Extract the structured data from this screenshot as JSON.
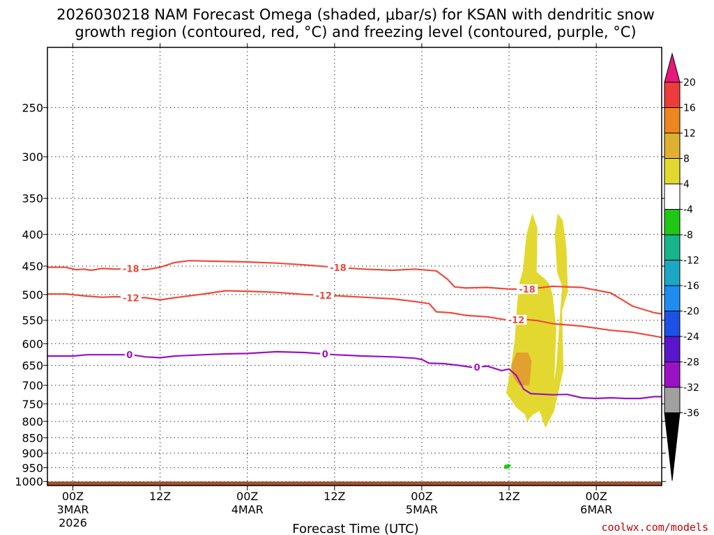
{
  "chart_data": {
    "type": "time-height cross section",
    "title_line1": "2026030218 NAM Forecast Omega (shaded, μbar/s) for KSAN with dendritic snow",
    "title_line2": "growth region (contoured, red, °C) and freezing level (contoured, purple, °C)",
    "xlabel": "Forecast Time (UTC)",
    "credit": "coolwx.com/models",
    "xlim_hours": [
      -3.5,
      81
    ],
    "x_ticks": [
      {
        "hour": 0,
        "label1": "00Z",
        "label2": "3MAR",
        "label3": "2026"
      },
      {
        "hour": 12,
        "label1": "12Z",
        "label2": "",
        "label3": ""
      },
      {
        "hour": 24,
        "label1": "00Z",
        "label2": "4MAR",
        "label3": ""
      },
      {
        "hour": 36,
        "label1": "12Z",
        "label2": "",
        "label3": ""
      },
      {
        "hour": 48,
        "label1": "00Z",
        "label2": "5MAR",
        "label3": ""
      },
      {
        "hour": 60,
        "label1": "12Z",
        "label2": "",
        "label3": ""
      },
      {
        "hour": 72,
        "label1": "00Z",
        "label2": "6MAR",
        "label3": ""
      }
    ],
    "y_ticks_hpa": [
      250,
      300,
      350,
      400,
      450,
      500,
      550,
      600,
      650,
      700,
      750,
      800,
      850,
      900,
      950,
      1000
    ],
    "y_top_hpa": 200,
    "y_bottom_hpa": 1015,
    "ground_top_hpa": 1000,
    "colorbar": {
      "labels": [
        "20",
        "16",
        "12",
        "8",
        "4",
        "-4",
        "-8",
        "-12",
        "-16",
        "-20",
        "-24",
        "-28",
        "-32",
        "-36"
      ],
      "colors": [
        "#e8177a",
        "#ee3b3b",
        "#ee8620",
        "#e0b030",
        "#e3d82f",
        "#ffffff",
        "#1ec814",
        "#18b48c",
        "#1aa8c4",
        "#1e8cf0",
        "#1c50e6",
        "#5a16cc",
        "#9a10c4",
        "#a0a0a0",
        "#000000"
      ]
    },
    "series": [
      {
        "name": "-18",
        "color": "#ee4a3c",
        "labels": [
          {
            "hour": 8,
            "text": "-18"
          },
          {
            "hour": 36.5,
            "text": "-18"
          },
          {
            "hour": 62.5,
            "text": "-18"
          }
        ],
        "points": [
          [
            -3.5,
            452
          ],
          [
            -1,
            452
          ],
          [
            0.5,
            456
          ],
          [
            1.5,
            455
          ],
          [
            2.5,
            457
          ],
          [
            4,
            454
          ],
          [
            6,
            455
          ],
          [
            8,
            454
          ],
          [
            10,
            456
          ],
          [
            12,
            452
          ],
          [
            14,
            444
          ],
          [
            16,
            441
          ],
          [
            20,
            442
          ],
          [
            24,
            443
          ],
          [
            28,
            445
          ],
          [
            32,
            448
          ],
          [
            36,
            452
          ],
          [
            40,
            455
          ],
          [
            44,
            457
          ],
          [
            47,
            455
          ],
          [
            50,
            458
          ],
          [
            51.5,
            472
          ],
          [
            52.5,
            486
          ],
          [
            54,
            488
          ],
          [
            57,
            487
          ],
          [
            60,
            490
          ],
          [
            62.5,
            490
          ],
          [
            64,
            488
          ],
          [
            66,
            485
          ],
          [
            70,
            487
          ],
          [
            74,
            497
          ],
          [
            77,
            522
          ],
          [
            80,
            535
          ],
          [
            81,
            537
          ]
        ]
      },
      {
        "name": "-12",
        "color": "#ee4a3c",
        "labels": [
          {
            "hour": 8,
            "text": "-12"
          },
          {
            "hour": 34.5,
            "text": "-12"
          },
          {
            "hour": 61,
            "text": "-12"
          }
        ],
        "points": [
          [
            -3.5,
            499
          ],
          [
            -1,
            499
          ],
          [
            2,
            503
          ],
          [
            4,
            505
          ],
          [
            6,
            504
          ],
          [
            8,
            506
          ],
          [
            10,
            506
          ],
          [
            12,
            510
          ],
          [
            14,
            506
          ],
          [
            18,
            499
          ],
          [
            21,
            493
          ],
          [
            24,
            494
          ],
          [
            28,
            496
          ],
          [
            32,
            500
          ],
          [
            36,
            502
          ],
          [
            40,
            505
          ],
          [
            44,
            508
          ],
          [
            47,
            513
          ],
          [
            49,
            517
          ],
          [
            50,
            533
          ],
          [
            52,
            535
          ],
          [
            54,
            540
          ],
          [
            57,
            543
          ],
          [
            60,
            550
          ],
          [
            62,
            548
          ],
          [
            64,
            551
          ],
          [
            66,
            557
          ],
          [
            70,
            562
          ],
          [
            74,
            571
          ],
          [
            77,
            575
          ],
          [
            81,
            586
          ]
        ]
      },
      {
        "name": "0",
        "color": "#9a10c4",
        "labels": [
          {
            "hour": 7.8,
            "text": "0"
          },
          {
            "hour": 34.7,
            "text": "0"
          },
          {
            "hour": 55.6,
            "text": "0"
          }
        ],
        "points": [
          [
            -3.5,
            628
          ],
          [
            0,
            628
          ],
          [
            2,
            625
          ],
          [
            4,
            625
          ],
          [
            6,
            625
          ],
          [
            8,
            625
          ],
          [
            10,
            630
          ],
          [
            12,
            632
          ],
          [
            14,
            628
          ],
          [
            18,
            625
          ],
          [
            21,
            623
          ],
          [
            24,
            622
          ],
          [
            28,
            618
          ],
          [
            32,
            620
          ],
          [
            36,
            625
          ],
          [
            40,
            628
          ],
          [
            44,
            630
          ],
          [
            47,
            633
          ],
          [
            48,
            636
          ],
          [
            49,
            645
          ],
          [
            51,
            646
          ],
          [
            53,
            650
          ],
          [
            55,
            655
          ],
          [
            57,
            652
          ],
          [
            59,
            663
          ],
          [
            60,
            659
          ],
          [
            61,
            675
          ],
          [
            62,
            710
          ],
          [
            63,
            722
          ],
          [
            66,
            725
          ],
          [
            68,
            724
          ],
          [
            70,
            733
          ],
          [
            72,
            735
          ],
          [
            74,
            733
          ],
          [
            76,
            735
          ],
          [
            78,
            735
          ],
          [
            80,
            730
          ],
          [
            81,
            730
          ]
        ]
      }
    ],
    "shaded_regions": [
      {
        "level": "4 to 8",
        "color": "#e3d82f",
        "polygon": [
          [
            60.8,
            590
          ],
          [
            61.1,
            520
          ],
          [
            61.4,
            480
          ],
          [
            61.9,
            458
          ],
          [
            62.4,
            400
          ],
          [
            63.2,
            370
          ],
          [
            63.9,
            390
          ],
          [
            63.8,
            460
          ],
          [
            64.8,
            470
          ],
          [
            65.5,
            480
          ],
          [
            66,
            500
          ],
          [
            66.5,
            570
          ],
          [
            66.2,
            700
          ],
          [
            65.9,
            730
          ],
          [
            66.5,
            655
          ],
          [
            67,
            540
          ],
          [
            67.3,
            485
          ],
          [
            66.6,
            460
          ],
          [
            66.3,
            400
          ],
          [
            66.7,
            370
          ],
          [
            67.4,
            380
          ],
          [
            67.9,
            420
          ],
          [
            68,
            460
          ],
          [
            68.1,
            495
          ],
          [
            67.3,
            530
          ],
          [
            67.4,
            600
          ],
          [
            67.5,
            660
          ],
          [
            66.2,
            770
          ],
          [
            65,
            820
          ],
          [
            64.2,
            770
          ],
          [
            63.3,
            780
          ],
          [
            62.5,
            800
          ],
          [
            62.2,
            780
          ],
          [
            61,
            760
          ],
          [
            59.6,
            720
          ],
          [
            60.3,
            650
          ]
        ]
      },
      {
        "level": "8 to 12",
        "color": "#e2a02e",
        "polygon": [
          [
            60.3,
            650
          ],
          [
            61,
            620
          ],
          [
            62.6,
            620
          ],
          [
            63.1,
            640
          ],
          [
            62.8,
            700
          ],
          [
            61.4,
            700
          ],
          [
            60.6,
            680
          ]
        ]
      },
      {
        "level": "-8 to -4",
        "color": "#1ec814",
        "polygon": [
          [
            59.3,
            942
          ],
          [
            59.9,
            937
          ],
          [
            60.3,
            941
          ],
          [
            60,
            952
          ],
          [
            59.4,
            955
          ]
        ]
      }
    ]
  }
}
